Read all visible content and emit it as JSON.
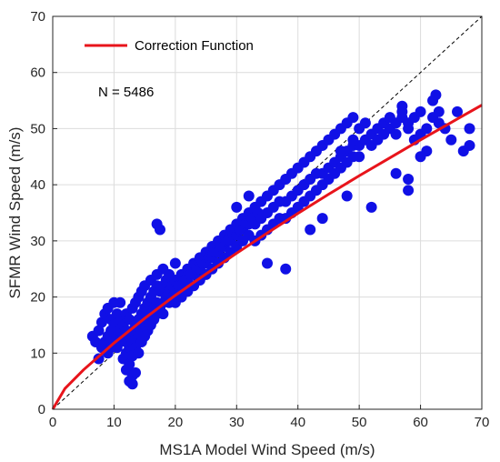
{
  "chart_data": {
    "type": "scatter",
    "xlabel": "MS1A Model Wind Speed (m/s)",
    "ylabel": "SFMR Wind Speed (m/s)",
    "xlim": [
      0,
      70
    ],
    "ylim": [
      0,
      70
    ],
    "xticks": [
      0,
      10,
      20,
      30,
      40,
      50,
      60,
      70
    ],
    "yticks": [
      0,
      10,
      20,
      30,
      40,
      50,
      60,
      70
    ],
    "grid": true,
    "legend": {
      "position": "top-left",
      "entries": [
        {
          "name": "Correction Function",
          "color": "#e8141b",
          "style": "line"
        }
      ]
    },
    "annotation": "N = 5486",
    "identity_line": {
      "style": "dashed",
      "color": "#000000"
    },
    "scatter_color": "#1010e6",
    "series": [
      {
        "name": "",
        "kind": "scatter",
        "points": [
          [
            6.5,
            13
          ],
          [
            7,
            12
          ],
          [
            7.5,
            9
          ],
          [
            7.5,
            14
          ],
          [
            8,
            11
          ],
          [
            8,
            15.5
          ],
          [
            8.5,
            12
          ],
          [
            8.5,
            17
          ],
          [
            9,
            13
          ],
          [
            9,
            10
          ],
          [
            9,
            18
          ],
          [
            9.5,
            14
          ],
          [
            9.5,
            11
          ],
          [
            9.5,
            16
          ],
          [
            10,
            12
          ],
          [
            10,
            15
          ],
          [
            10,
            19
          ],
          [
            10.5,
            13
          ],
          [
            10.5,
            17
          ],
          [
            10.5,
            11
          ],
          [
            11,
            14
          ],
          [
            11,
            12
          ],
          [
            11,
            16
          ],
          [
            11,
            19
          ],
          [
            11.5,
            13
          ],
          [
            11.5,
            9
          ],
          [
            11.5,
            15
          ],
          [
            12,
            12
          ],
          [
            12,
            14
          ],
          [
            12,
            17
          ],
          [
            12,
            10
          ],
          [
            12,
            7
          ],
          [
            12.5,
            13
          ],
          [
            12.5,
            16
          ],
          [
            12.5,
            11
          ],
          [
            12.5,
            8
          ],
          [
            13,
            12
          ],
          [
            13,
            14
          ],
          [
            13,
            18
          ],
          [
            13,
            6
          ],
          [
            13,
            9.5
          ],
          [
            13,
            4.5
          ],
          [
            13.5,
            15
          ],
          [
            13.5,
            11
          ],
          [
            13.5,
            19
          ],
          [
            14,
            13
          ],
          [
            14,
            16
          ],
          [
            14,
            10
          ],
          [
            14,
            20
          ],
          [
            14.5,
            14
          ],
          [
            14.5,
            17
          ],
          [
            14.5,
            12
          ],
          [
            14.5,
            21
          ],
          [
            15,
            15
          ],
          [
            15,
            18
          ],
          [
            15,
            13
          ],
          [
            15,
            22
          ],
          [
            15.5,
            16
          ],
          [
            15.5,
            19
          ],
          [
            15.5,
            14
          ],
          [
            16,
            17
          ],
          [
            16,
            20
          ],
          [
            16,
            15
          ],
          [
            16,
            23
          ],
          [
            16.5,
            18
          ],
          [
            16.5,
            21
          ],
          [
            16.5,
            16
          ],
          [
            17,
            19
          ],
          [
            17,
            22
          ],
          [
            17,
            17
          ],
          [
            17,
            24
          ],
          [
            17.5,
            18
          ],
          [
            17.5,
            21
          ],
          [
            18,
            19
          ],
          [
            18,
            22
          ],
          [
            18,
            25
          ],
          [
            18,
            17
          ],
          [
            18.5,
            20
          ],
          [
            18.5,
            23
          ],
          [
            19,
            21
          ],
          [
            19,
            24
          ],
          [
            19,
            19
          ],
          [
            19.5,
            22
          ],
          [
            19.5,
            20
          ],
          [
            20,
            21
          ],
          [
            20,
            23
          ],
          [
            20,
            26
          ],
          [
            20,
            19
          ],
          [
            20.5,
            22
          ],
          [
            21,
            22
          ],
          [
            21,
            24
          ],
          [
            21,
            20
          ],
          [
            21.5,
            23
          ],
          [
            22,
            23
          ],
          [
            22,
            25
          ],
          [
            22,
            21
          ],
          [
            22.5,
            24
          ],
          [
            23,
            24
          ],
          [
            23,
            26
          ],
          [
            23,
            22
          ],
          [
            23.5,
            25
          ],
          [
            24,
            25
          ],
          [
            24,
            27
          ],
          [
            24,
            23
          ],
          [
            24.5,
            26
          ],
          [
            25,
            26
          ],
          [
            25,
            28
          ],
          [
            25,
            24
          ],
          [
            25.5,
            27
          ],
          [
            26,
            27
          ],
          [
            26,
            29
          ],
          [
            26,
            25
          ],
          [
            26.5,
            28
          ],
          [
            27,
            28
          ],
          [
            27,
            30
          ],
          [
            27,
            26
          ],
          [
            27.5,
            29
          ],
          [
            28,
            29
          ],
          [
            28,
            31
          ],
          [
            28,
            27
          ],
          [
            28.5,
            30
          ],
          [
            29,
            30
          ],
          [
            29,
            32
          ],
          [
            29,
            28
          ],
          [
            29.5,
            31
          ],
          [
            30,
            31
          ],
          [
            30,
            33
          ],
          [
            30,
            29
          ],
          [
            30.5,
            32
          ],
          [
            31,
            32
          ],
          [
            31,
            34
          ],
          [
            31,
            30
          ],
          [
            31.5,
            33
          ],
          [
            32,
            33
          ],
          [
            32,
            35
          ],
          [
            32,
            31
          ],
          [
            32.5,
            34
          ],
          [
            33,
            33
          ],
          [
            33,
            36
          ],
          [
            33,
            30
          ],
          [
            33.5,
            35
          ],
          [
            34,
            34
          ],
          [
            34,
            37
          ],
          [
            34,
            31
          ],
          [
            35,
            35
          ],
          [
            35,
            38
          ],
          [
            35,
            32
          ],
          [
            36,
            36
          ],
          [
            36,
            39
          ],
          [
            36,
            33
          ],
          [
            37,
            37
          ],
          [
            37,
            40
          ],
          [
            37,
            34
          ],
          [
            38,
            37
          ],
          [
            38,
            41
          ],
          [
            38,
            34
          ],
          [
            39,
            38
          ],
          [
            39,
            42
          ],
          [
            39,
            35
          ],
          [
            40,
            39
          ],
          [
            40,
            43
          ],
          [
            40,
            36
          ],
          [
            41,
            40
          ],
          [
            41,
            44
          ],
          [
            41,
            37
          ],
          [
            42,
            41
          ],
          [
            42,
            45
          ],
          [
            42,
            38
          ],
          [
            43,
            42
          ],
          [
            43,
            46
          ],
          [
            43,
            39
          ],
          [
            44,
            42
          ],
          [
            44,
            47
          ],
          [
            44,
            40
          ],
          [
            45,
            43
          ],
          [
            45,
            48
          ],
          [
            45,
            41
          ],
          [
            46,
            44
          ],
          [
            46,
            49
          ],
          [
            46,
            42
          ],
          [
            47,
            45
          ],
          [
            47,
            50
          ],
          [
            47,
            43
          ],
          [
            48,
            46
          ],
          [
            48,
            51
          ],
          [
            48,
            44
          ],
          [
            49,
            47
          ],
          [
            49,
            52
          ],
          [
            49,
            45
          ],
          [
            50,
            47
          ],
          [
            50,
            50
          ],
          [
            50,
            45
          ],
          [
            51,
            48
          ],
          [
            51,
            51
          ],
          [
            52,
            49
          ],
          [
            52,
            47
          ],
          [
            53,
            50
          ],
          [
            53,
            48
          ],
          [
            54,
            51
          ],
          [
            54,
            49
          ],
          [
            55,
            52
          ],
          [
            55,
            50
          ],
          [
            56,
            51
          ],
          [
            56,
            49
          ],
          [
            57,
            52
          ],
          [
            57,
            53
          ],
          [
            58,
            50
          ],
          [
            58,
            51
          ],
          [
            59,
            52
          ],
          [
            59,
            48
          ],
          [
            60,
            53
          ],
          [
            60,
            49
          ],
          [
            61,
            50
          ],
          [
            61,
            46
          ],
          [
            62,
            55
          ],
          [
            62,
            52
          ],
          [
            63,
            53
          ],
          [
            63,
            51
          ],
          [
            64,
            50
          ],
          [
            65,
            48
          ],
          [
            66,
            53
          ],
          [
            67,
            46
          ],
          [
            68,
            50
          ],
          [
            68,
            47
          ],
          [
            17,
            33
          ],
          [
            17.5,
            32
          ],
          [
            35,
            26
          ],
          [
            38,
            25
          ],
          [
            32,
            38
          ],
          [
            30,
            36
          ],
          [
            44,
            34
          ],
          [
            42,
            32
          ],
          [
            48,
            38
          ],
          [
            52,
            36
          ],
          [
            56,
            42
          ],
          [
            58,
            41
          ],
          [
            60,
            45
          ],
          [
            58,
            39
          ],
          [
            62.5,
            56
          ],
          [
            57,
            54
          ],
          [
            49,
            48
          ],
          [
            47,
            46
          ],
          [
            12.5,
            5
          ],
          [
            13.5,
            6.5
          ]
        ]
      },
      {
        "name": "Correction Function",
        "kind": "line",
        "points": [
          [
            0,
            0
          ],
          [
            2,
            3.7
          ],
          [
            5,
            7
          ],
          [
            10,
            11.8
          ],
          [
            15,
            16.2
          ],
          [
            20,
            20.3
          ],
          [
            25,
            24.1
          ],
          [
            30,
            27.8
          ],
          [
            35,
            31.4
          ],
          [
            40,
            34.9
          ],
          [
            45,
            38.3
          ],
          [
            50,
            41.6
          ],
          [
            55,
            44.8
          ],
          [
            60,
            48.0
          ],
          [
            65,
            51.1
          ],
          [
            70,
            54.2
          ]
        ]
      }
    ]
  }
}
